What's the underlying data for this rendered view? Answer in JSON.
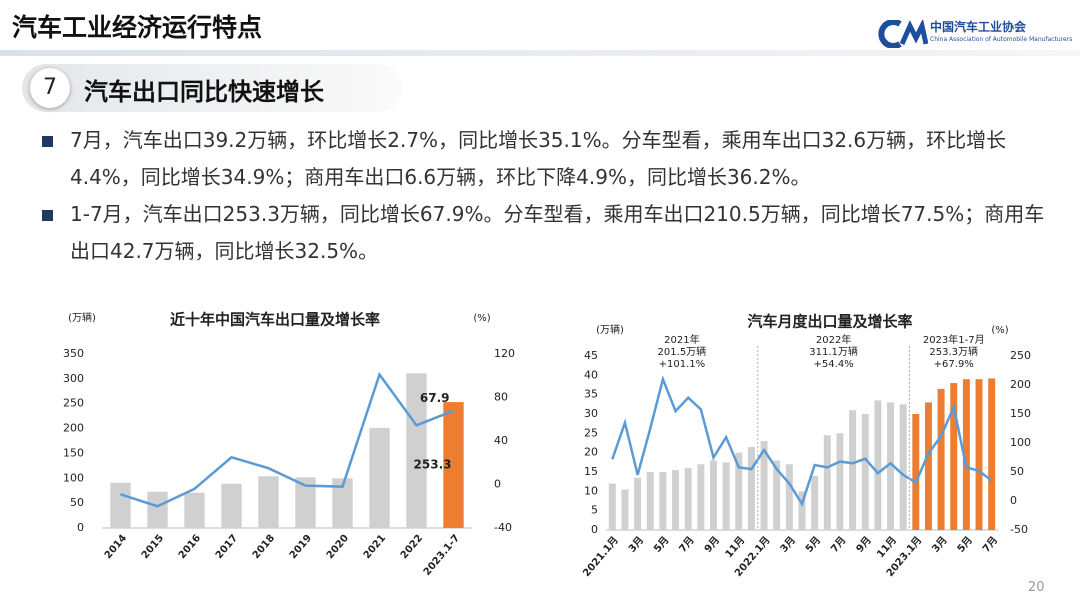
{
  "header": {
    "title": "汽车工业经济运行特点",
    "logo_cn": "中国汽车工业协会",
    "logo_en": "China Association of Automobile Manufacturers"
  },
  "section": {
    "number": "7",
    "title": "汽车出口同比快速增长"
  },
  "bullets": [
    "7月，汽车出口39.2万辆，环比增长2.7%，同比增长35.1%。分车型看，乘用车出口32.6万辆，环比增长4.4%，同比增长34.9%；商用车出口6.6万辆，环比下降4.9%，同比增长36.2%。",
    "1-7月，汽车出口253.3万辆，同比增长67.9%。分车型看，乘用车出口210.5万辆，同比增长77.5%；商用车出口42.7万辆，同比增长32.5%。"
  ],
  "page_number": "20",
  "chart_data": [
    {
      "type": "combo",
      "title": "近十年中国汽车出口量及增长率",
      "y_unit": "(万辆)",
      "y2_unit": "(%)",
      "categories": [
        "2014",
        "2015",
        "2016",
        "2017",
        "2018",
        "2019",
        "2020",
        "2021",
        "2022",
        "2023.1-7"
      ],
      "series": [
        {
          "kind": "bar",
          "colors": [
            "#d0d0d0",
            "#d0d0d0",
            "#d0d0d0",
            "#d0d0d0",
            "#d0d0d0",
            "#d0d0d0",
            "#d0d0d0",
            "#d0d0d0",
            "#d0d0d0",
            "#ed7d31"
          ],
          "values": [
            91,
            73,
            71,
            89,
            104,
            102,
            100,
            201.5,
            311.1,
            253.3
          ]
        },
        {
          "kind": "line",
          "axis": "y2",
          "color": "#5b9bd5",
          "values": [
            -9,
            -20,
            -4,
            25,
            15,
            -1,
            -2,
            101.1,
            54.4,
            67.9
          ]
        }
      ],
      "ylim": [
        0,
        350
      ],
      "yticks": [
        0,
        50,
        100,
        150,
        200,
        250,
        300,
        350
      ],
      "y2lim": [
        -40,
        120
      ],
      "y2ticks": [
        -40,
        0,
        40,
        80,
        120
      ],
      "grid": false
    },
    {
      "type": "combo",
      "title": "汽车月度出口量及增长率",
      "y_unit": "(万辆)",
      "y2_unit": "(%)",
      "categories": [
        "2021.1月",
        null,
        "3月",
        null,
        "5月",
        null,
        "7月",
        null,
        "9月",
        null,
        "11月",
        null,
        "2022.1月",
        null,
        "3月",
        null,
        "5月",
        null,
        "7月",
        null,
        "9月",
        null,
        "11月",
        null,
        "2023.1月",
        null,
        "3月",
        null,
        "5月",
        null,
        "7月"
      ],
      "series": [
        {
          "kind": "bar",
          "colors": [
            "#d0d0d0",
            "#d0d0d0",
            "#d0d0d0",
            "#d0d0d0",
            "#d0d0d0",
            "#d0d0d0",
            "#d0d0d0",
            "#d0d0d0",
            "#d0d0d0",
            "#d0d0d0",
            "#d0d0d0",
            "#d0d0d0",
            "#d0d0d0",
            "#d0d0d0",
            "#d0d0d0",
            "#d0d0d0",
            "#d0d0d0",
            "#d0d0d0",
            "#d0d0d0",
            "#d0d0d0",
            "#d0d0d0",
            "#d0d0d0",
            "#d0d0d0",
            "#d0d0d0",
            "#ed7d31",
            "#ed7d31",
            "#ed7d31",
            "#ed7d31",
            "#ed7d31",
            "#ed7d31",
            "#ed7d31"
          ],
          "values": [
            12,
            10.5,
            13.5,
            15,
            15,
            15.5,
            16,
            17,
            18,
            17.5,
            20,
            21.5,
            23,
            18,
            17,
            10,
            14,
            24.5,
            25,
            31,
            30,
            33.5,
            33,
            32.5,
            30,
            33,
            36.5,
            38,
            39,
            39,
            39.2
          ]
        },
        {
          "kind": "line",
          "axis": "y2",
          "color": "#5b9bd5",
          "values": [
            72,
            135,
            45,
            125,
            210,
            155,
            178,
            158,
            75,
            110,
            58,
            55,
            88,
            55,
            30,
            -5,
            62,
            58,
            68,
            65,
            73,
            48,
            65,
            45,
            32,
            82,
            112,
            162,
            58,
            52,
            35
          ]
        }
      ],
      "ylim": [
        0,
        45
      ],
      "yticks": [
        0,
        5,
        10,
        15,
        20,
        25,
        30,
        35,
        40,
        45
      ],
      "y2lim": [
        -50,
        250
      ],
      "y2ticks": [
        -50,
        0,
        50,
        100,
        150,
        200,
        250
      ],
      "grid": false,
      "annotations": [
        [
          "2021年",
          "201.5万辆",
          "+101.1%"
        ],
        [
          "2022年",
          "311.1万辆",
          "+54.4%"
        ],
        [
          "2023年1-7月",
          "253.3万辆",
          "+67.9%"
        ]
      ]
    }
  ]
}
